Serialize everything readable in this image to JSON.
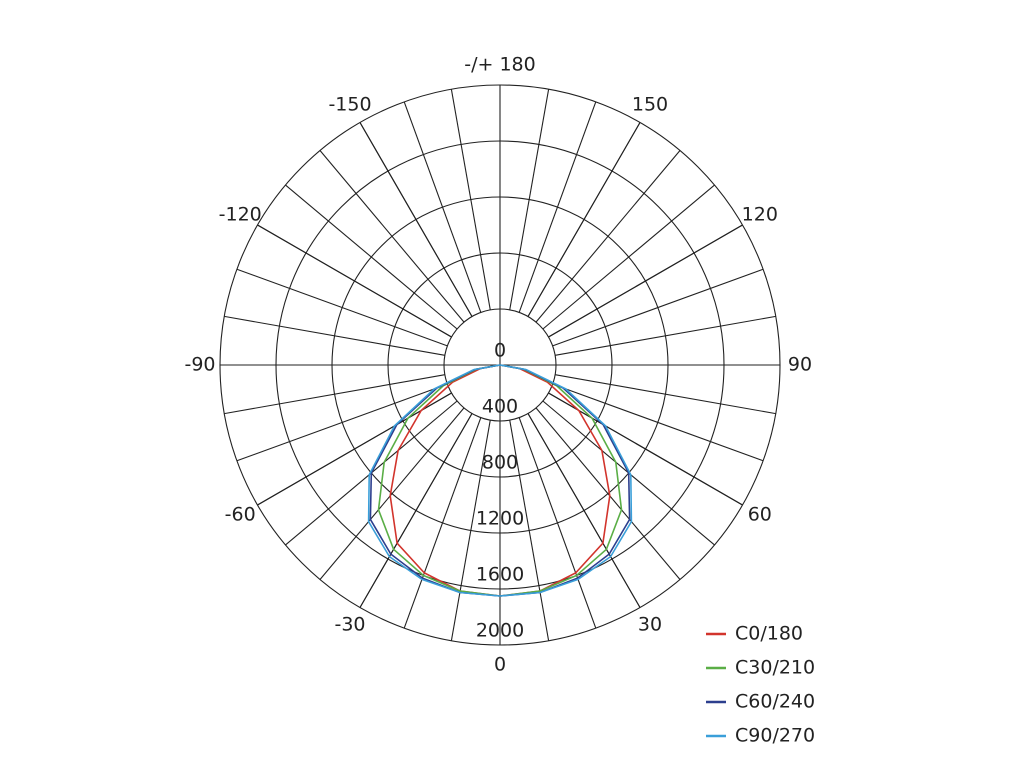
{
  "chart_data": {
    "type": "polar",
    "x": [
      -90,
      -80,
      -70,
      -60,
      -50,
      -40,
      -30,
      -20,
      -10,
      0,
      10,
      20,
      30,
      40,
      50,
      60,
      70,
      80,
      90
    ],
    "series": [
      {
        "name": "C0/180",
        "color": "#d2342c",
        "values": [
          0,
          140,
          360,
          650,
          950,
          1220,
          1470,
          1580,
          1640,
          1650,
          1640,
          1580,
          1470,
          1220,
          950,
          650,
          360,
          140,
          0
        ]
      },
      {
        "name": "C30/210",
        "color": "#5aae46",
        "values": [
          0,
          170,
          430,
          760,
          1080,
          1350,
          1520,
          1600,
          1640,
          1650,
          1640,
          1600,
          1520,
          1350,
          1080,
          760,
          430,
          170,
          0
        ]
      },
      {
        "name": "C60/240",
        "color": "#2c3f8e",
        "values": [
          0,
          180,
          480,
          850,
          1200,
          1440,
          1560,
          1620,
          1650,
          1650,
          1650,
          1620,
          1560,
          1440,
          1200,
          850,
          480,
          180,
          0
        ]
      },
      {
        "name": "C90/270",
        "color": "#3a9fd9",
        "values": [
          0,
          190,
          500,
          870,
          1220,
          1460,
          1580,
          1630,
          1650,
          1650,
          1650,
          1630,
          1580,
          1460,
          1220,
          870,
          500,
          190,
          0
        ]
      }
    ],
    "rlim": [
      0,
      2000
    ],
    "rticks": [
      0,
      400,
      800,
      1200,
      1600,
      2000
    ],
    "thetaticks": [
      {
        "value": 180,
        "label": "-/+ 180"
      },
      150,
      120,
      90,
      60,
      30,
      0,
      -30,
      -60,
      -90,
      -120,
      -150
    ]
  }
}
